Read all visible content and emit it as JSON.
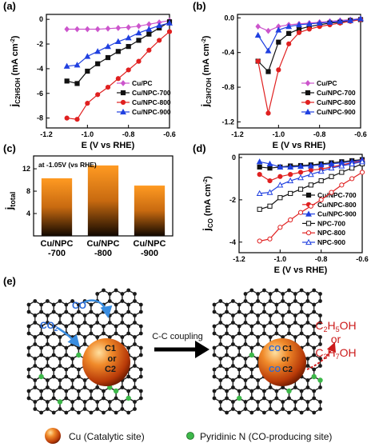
{
  "colors": {
    "cu_pc": "#cc55cc",
    "npc700": "#111111",
    "npc800": "#e02020",
    "npc900": "#2040e0",
    "bar_top": "#ff9a22",
    "bar_bottom": "#120800",
    "curved_arrow": "#3a8de0",
    "product_text": "#cc1a1a",
    "co2_text": "#2a6ad8",
    "sphere": "#e8701a",
    "n_atom": "#3db84a",
    "c_atom": "#1a1a1a"
  },
  "chart_data": [
    {
      "id": "a",
      "label": "(a)",
      "type": "line",
      "ylabel": "j",
      "ylabel_sub": "C2H5OH",
      "ylabel_unit": " (mA cm",
      "xlabel": "E (V vs RHE)",
      "xlim": [
        -1.2,
        -0.6
      ],
      "ylim": [
        -8.8,
        0.4
      ],
      "xticks": [
        -1.2,
        -1.0,
        -0.8,
        -0.6
      ],
      "xticklabels": [
        "-1.2",
        "-1.0",
        "-0.8",
        "-0.6"
      ],
      "yticks": [
        0,
        -2,
        -4,
        -6,
        -8
      ],
      "yticklabels": [
        "0",
        "-2",
        "-4",
        "-6",
        "-8"
      ],
      "legend_position": "bottom-right",
      "x": [
        -1.1,
        -1.05,
        -1.0,
        -0.95,
        -0.9,
        -0.85,
        -0.8,
        -0.75,
        -0.7,
        -0.65,
        -0.6
      ],
      "series": [
        {
          "name": "Cu/PC",
          "color_key": "cu_pc",
          "marker": "diamond",
          "filled": true,
          "values": [
            -0.8,
            -0.8,
            -0.8,
            -0.8,
            -0.75,
            -0.7,
            -0.65,
            -0.55,
            -0.4,
            -0.25,
            -0.1
          ]
        },
        {
          "name": "Cu/NPC-700",
          "color_key": "npc700",
          "marker": "square",
          "filled": true,
          "values": [
            -5.0,
            -5.2,
            -4.2,
            -3.6,
            -3.1,
            -2.6,
            -2.2,
            -1.7,
            -1.2,
            -0.7,
            -0.2
          ]
        },
        {
          "name": "Cu/NPC-800",
          "color_key": "npc800",
          "marker": "circle",
          "filled": true,
          "values": [
            -8.0,
            -8.1,
            -6.8,
            -6.1,
            -5.5,
            -4.8,
            -4.1,
            -3.4,
            -2.5,
            -1.7,
            -1.0
          ]
        },
        {
          "name": "Cu/NPC-900",
          "color_key": "npc900",
          "marker": "triangle",
          "filled": true,
          "values": [
            -3.8,
            -3.7,
            -3.0,
            -2.6,
            -2.2,
            -1.8,
            -1.5,
            -1.1,
            -0.8,
            -0.5,
            -0.3
          ]
        }
      ]
    },
    {
      "id": "b",
      "label": "(b)",
      "type": "line",
      "ylabel": "j",
      "ylabel_sub": "C3H7OH",
      "ylabel_unit": " (mA cm",
      "xlabel": "E (V vs RHE)",
      "xlim": [
        -1.2,
        -0.6
      ],
      "ylim": [
        -1.27,
        0.04
      ],
      "xticks": [
        -1.2,
        -1.0,
        -0.8,
        -0.6
      ],
      "xticklabels": [
        "-1.2",
        "-1.0",
        "-0.8",
        "-0.6"
      ],
      "yticks": [
        0.0,
        -0.4,
        -0.8,
        -1.2
      ],
      "yticklabels": [
        "0.0",
        "-0.4",
        "-0.8",
        "-1.2"
      ],
      "legend_position": "bottom-right",
      "x": [
        -1.1,
        -1.05,
        -1.0,
        -0.95,
        -0.9,
        -0.85,
        -0.8,
        -0.75,
        -0.7,
        -0.65,
        -0.6
      ],
      "series": [
        {
          "name": "Cu/PC",
          "color_key": "cu_pc",
          "marker": "diamond",
          "filled": true,
          "values": [
            -0.1,
            -0.15,
            -0.1,
            -0.08,
            -0.07,
            -0.06,
            -0.05,
            -0.04,
            -0.03,
            -0.02,
            -0.01
          ]
        },
        {
          "name": "Cu/NPC-700",
          "color_key": "npc700",
          "marker": "square",
          "filled": true,
          "values": [
            -0.5,
            -0.62,
            -0.28,
            -0.18,
            -0.13,
            -0.1,
            -0.08,
            -0.06,
            -0.05,
            -0.03,
            -0.02
          ]
        },
        {
          "name": "Cu/NPC-800",
          "color_key": "npc800",
          "marker": "circle",
          "filled": true,
          "values": [
            -0.5,
            -1.1,
            -0.6,
            -0.3,
            -0.17,
            -0.13,
            -0.1,
            -0.08,
            -0.06,
            -0.04,
            -0.02
          ]
        },
        {
          "name": "Cu/NPC-900",
          "color_key": "npc900",
          "marker": "triangle",
          "filled": true,
          "values": [
            -0.2,
            -0.38,
            -0.14,
            -0.1,
            -0.08,
            -0.07,
            -0.06,
            -0.05,
            -0.04,
            -0.03,
            -0.01
          ]
        }
      ]
    },
    {
      "id": "c",
      "label": "(c)",
      "type": "bar",
      "annotation": "at -1.05V (vs RHE)",
      "ylabel": "j",
      "ylabel_sub": "total",
      "ylim": [
        0,
        14.3
      ],
      "yticks": [
        0,
        4,
        8,
        12
      ],
      "yticklabels": [
        "0",
        "4",
        "8",
        "12"
      ],
      "categories": [
        [
          "Cu/NPC",
          "-700"
        ],
        [
          "Cu/NPC",
          "-800"
        ],
        [
          "Cu/NPC",
          "-900"
        ]
      ],
      "values": [
        10.3,
        12.6,
        9.0
      ]
    },
    {
      "id": "d",
      "label": "(d)",
      "type": "line",
      "ylabel": "j",
      "ylabel_sub": "CO",
      "ylabel_unit": " (mA cm",
      "xlabel": "E (V vs RHE)",
      "xlim": [
        -1.2,
        -0.6
      ],
      "ylim": [
        -4.5,
        0.15
      ],
      "xticks": [
        -1.2,
        -1.0,
        -0.8,
        -0.6
      ],
      "xticklabels": [
        "-1.2",
        "-1.0",
        "-0.8",
        "-0.6"
      ],
      "yticks": [
        0,
        -2,
        -4
      ],
      "yticklabels": [
        "0",
        "-2",
        "-4"
      ],
      "legend_position": "bottom-right",
      "x": [
        -1.1,
        -1.05,
        -1.0,
        -0.95,
        -0.9,
        -0.85,
        -0.8,
        -0.75,
        -0.7,
        -0.65,
        -0.6
      ],
      "series": [
        {
          "name": "Cu/NPC-700",
          "color_key": "npc700",
          "marker": "square",
          "filled": true,
          "values": [
            -0.45,
            -0.5,
            -0.45,
            -0.4,
            -0.38,
            -0.35,
            -0.3,
            -0.25,
            -0.2,
            -0.15,
            -0.1
          ]
        },
        {
          "name": "Cu/NPC-800",
          "color_key": "npc800",
          "marker": "circle",
          "filled": true,
          "values": [
            -0.8,
            -1.1,
            -0.9,
            -0.8,
            -0.7,
            -0.6,
            -0.55,
            -0.45,
            -0.35,
            -0.25,
            -0.15
          ]
        },
        {
          "name": "Cu/NPC-900",
          "color_key": "npc900",
          "marker": "triangle",
          "filled": true,
          "values": [
            -0.2,
            -0.3,
            -0.45,
            -0.45,
            -0.42,
            -0.4,
            -0.35,
            -0.3,
            -0.25,
            -0.2,
            -0.12
          ]
        },
        {
          "name": "NPC-700",
          "color_key": "npc700",
          "marker": "square",
          "filled": false,
          "values": [
            -2.45,
            -2.3,
            -1.9,
            -1.7,
            -1.5,
            -1.3,
            -1.1,
            -0.9,
            -0.7,
            -0.5,
            -0.3
          ]
        },
        {
          "name": "NPC-800",
          "color_key": "npc800",
          "marker": "circle",
          "filled": false,
          "values": [
            -3.95,
            -3.85,
            -3.3,
            -2.95,
            -2.6,
            -2.3,
            -2.0,
            -1.65,
            -1.3,
            -1.0,
            -0.7
          ]
        },
        {
          "name": "NPC-900",
          "color_key": "npc900",
          "marker": "triangle",
          "filled": false,
          "values": [
            -1.7,
            -1.65,
            -1.3,
            -1.1,
            -0.95,
            -0.8,
            -0.65,
            -0.5,
            -0.4,
            -0.3,
            -0.2
          ]
        }
      ]
    }
  ],
  "scheme": {
    "label": "(e)",
    "co2_label": "CO",
    "co2_sub": "2",
    "co_label": "CO",
    "sphere_text": [
      "C1",
      "or",
      "C2"
    ],
    "sphere_text_after": [
      "CO",
      "C1",
      "or",
      "CO",
      "C2"
    ],
    "arrow_label": "C-C coupling",
    "product1": "C",
    "product1_sub": "2",
    "product1_rest": "H",
    "product1_sub2": "5",
    "product1_tail": "OH",
    "or_text": "or",
    "product2": "C",
    "product2_sub": "3",
    "product2_rest": "H",
    "product2_sub2": "7",
    "product2_tail": "OH",
    "legend_cu": "Cu (Catalytic site)",
    "legend_n": "Pyridinic N (CO-producing site)"
  }
}
